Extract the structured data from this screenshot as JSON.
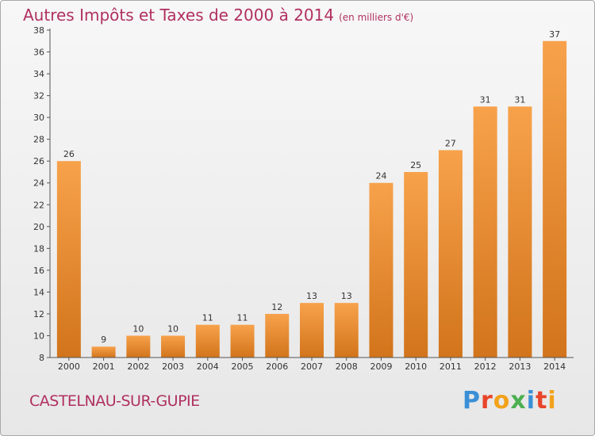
{
  "title": "Autres Impôts et Taxes de 2000 à 2014",
  "unit_label": "(en milliers d'€)",
  "commune": "CASTELNAU-SUR-GUPIE",
  "logo_text": "Proxiti",
  "colors": {
    "title": "#b03060",
    "bar_light": "#f7a24b",
    "bar_dark": "#d2741b",
    "logo": [
      "#3a8fd6",
      "#e8442a",
      "#f2a21a",
      "#4caf50",
      "#3a8fd6",
      "#e8442a",
      "#f2a21a"
    ]
  },
  "chart_data": {
    "type": "bar",
    "categories": [
      "2000",
      "2001",
      "2002",
      "2003",
      "2004",
      "2005",
      "2006",
      "2007",
      "2008",
      "2009",
      "2010",
      "2011",
      "2012",
      "2013",
      "2014"
    ],
    "values": [
      26,
      9,
      10,
      10,
      11,
      11,
      12,
      13,
      13,
      24,
      25,
      27,
      31,
      31,
      37
    ],
    "data_labels": [
      "26",
      "9",
      "10",
      "10",
      "11",
      "11",
      "12",
      "13",
      "13",
      "24",
      "25",
      "27",
      "31",
      "31",
      "37"
    ],
    "y_ticks": [
      8,
      10,
      12,
      14,
      16,
      18,
      20,
      22,
      24,
      26,
      28,
      30,
      32,
      34,
      36,
      38
    ],
    "ylim": [
      8,
      38
    ],
    "grid": false,
    "title": "Autres Impôts et Taxes de 2000 à 2014",
    "xlabel": "",
    "ylabel": ""
  }
}
